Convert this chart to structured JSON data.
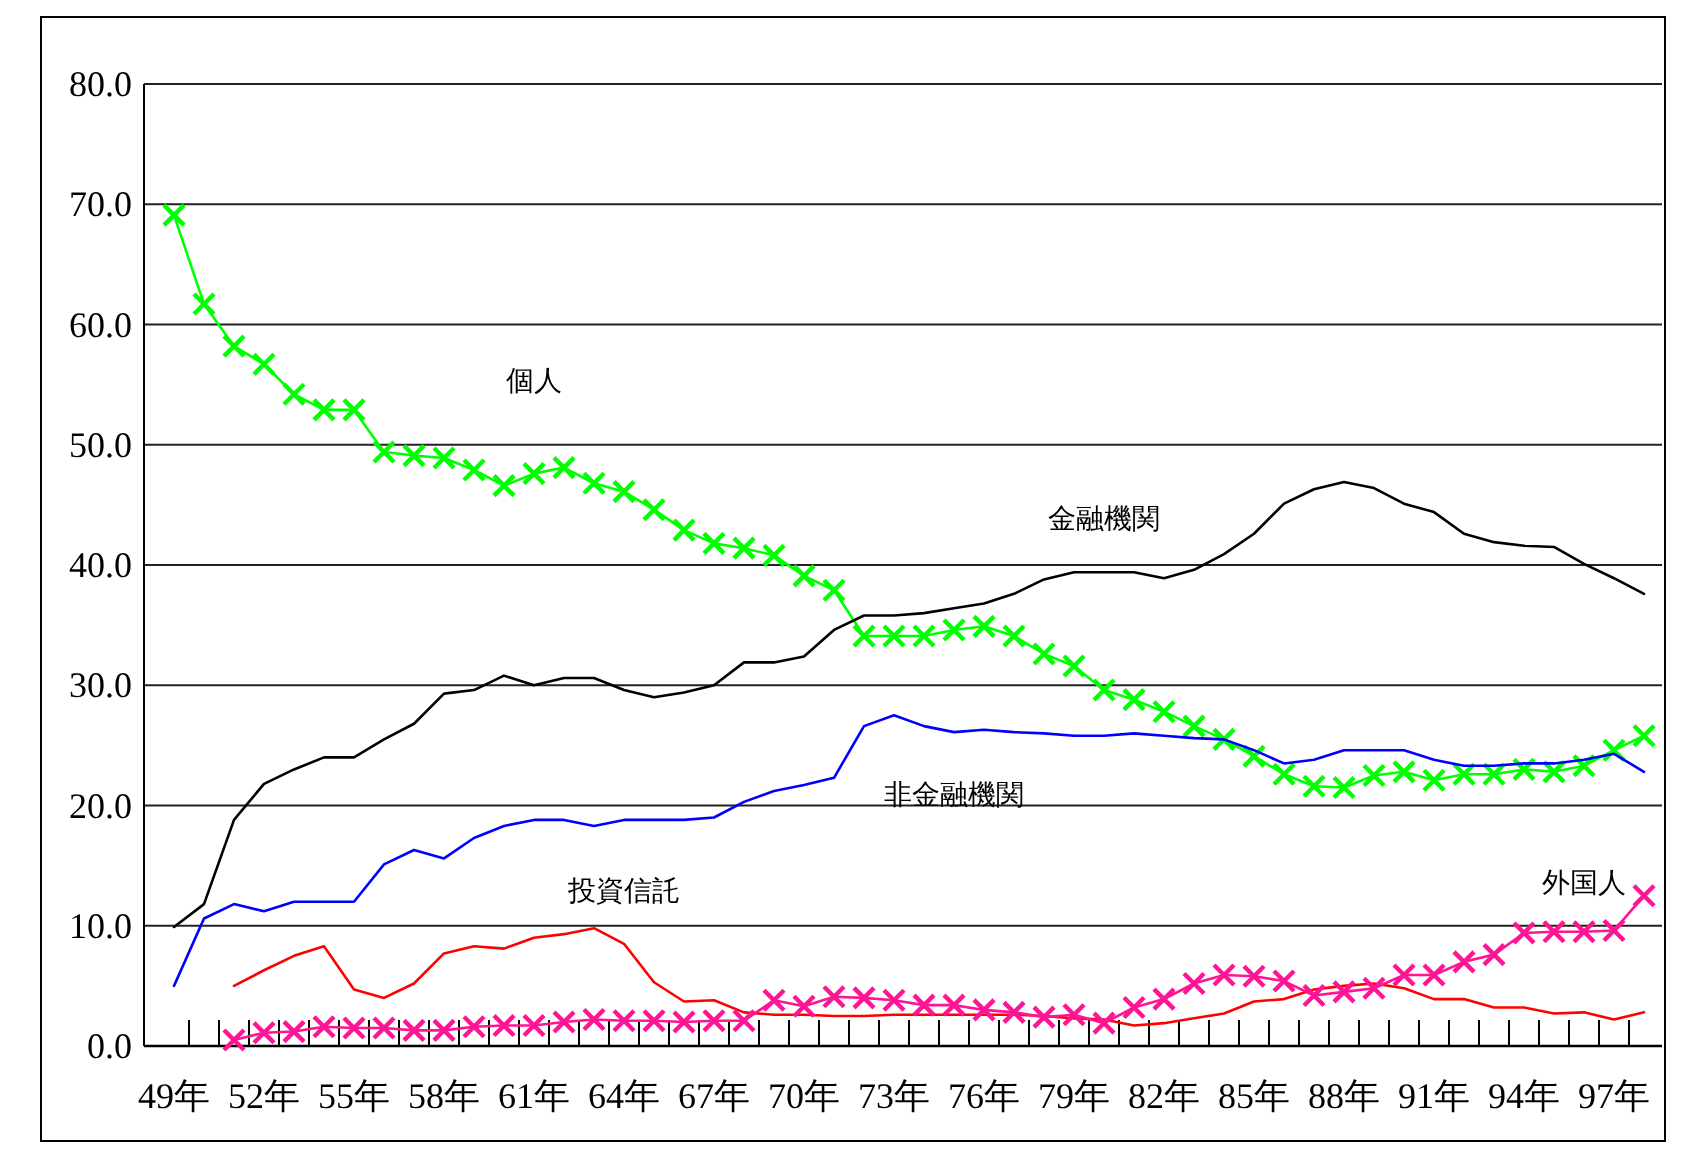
{
  "chart_data": {
    "type": "line",
    "categories": [
      "49年",
      null,
      null,
      "52年",
      null,
      null,
      "55年",
      null,
      null,
      "58年",
      null,
      null,
      "61年",
      null,
      null,
      "64年",
      null,
      null,
      "67年",
      null,
      null,
      "70年",
      null,
      null,
      "73年",
      null,
      null,
      "76年",
      null,
      null,
      "79年",
      null,
      null,
      "82年",
      null,
      null,
      "85年",
      null,
      null,
      "88年",
      null,
      null,
      "91年",
      null,
      null,
      "94年",
      null,
      null,
      "97年",
      null
    ],
    "ylim": [
      0,
      80
    ],
    "yticks": [
      {
        "value": 0,
        "label": "0.0"
      },
      {
        "value": 10,
        "label": "10.0"
      },
      {
        "value": 20,
        "label": "20.0"
      },
      {
        "value": 30,
        "label": "30.0"
      },
      {
        "value": 40,
        "label": "40.0"
      },
      {
        "value": 50,
        "label": "50.0"
      },
      {
        "value": 60,
        "label": "60.0"
      },
      {
        "value": 70,
        "label": "70.0"
      },
      {
        "value": 80,
        "label": "80.0"
      }
    ],
    "grid": "y",
    "series": [
      {
        "name": "個人",
        "color": "#00ff00",
        "marker": "cross",
        "values": [
          69.1,
          61.7,
          58.2,
          56.7,
          54.2,
          52.9,
          52.9,
          49.4,
          49.1,
          48.9,
          47.9,
          46.6,
          47.6,
          48.1,
          46.8,
          46.1,
          44.6,
          42.9,
          41.8,
          41.4,
          40.8,
          39.1,
          37.9,
          34.1,
          34.1,
          34.1,
          34.6,
          34.9,
          34.1,
          32.6,
          31.6,
          29.6,
          28.8,
          27.8,
          26.6,
          25.5,
          24.1,
          22.6,
          21.6,
          21.5,
          22.5,
          22.8,
          22.1,
          22.6,
          22.6,
          23.0,
          22.8,
          23.3,
          24.6,
          25.8
        ]
      },
      {
        "name": "金融機関",
        "color": "#000000",
        "marker": "none",
        "values": [
          9.9,
          11.8,
          18.8,
          21.8,
          23.0,
          24.0,
          24.0,
          25.5,
          26.8,
          29.3,
          29.6,
          30.8,
          30.0,
          30.6,
          30.6,
          29.6,
          29.0,
          29.4,
          30.0,
          31.9,
          31.9,
          32.4,
          34.6,
          35.8,
          35.8,
          36.0,
          36.4,
          36.8,
          37.6,
          38.8,
          39.4,
          39.4,
          39.4,
          38.9,
          39.6,
          40.9,
          42.6,
          45.1,
          46.3,
          46.9,
          46.4,
          45.1,
          44.4,
          42.6,
          41.9,
          41.6,
          41.5,
          40.1,
          38.9,
          37.6
        ]
      },
      {
        "name": "非金融機関",
        "color": "#0000ff",
        "marker": "none",
        "values": [
          5.0,
          10.6,
          11.8,
          11.2,
          12.0,
          12.0,
          12.0,
          15.1,
          16.3,
          15.6,
          17.3,
          18.3,
          18.8,
          18.8,
          18.3,
          18.8,
          18.8,
          18.8,
          19.0,
          20.3,
          21.2,
          21.7,
          22.3,
          26.6,
          27.5,
          26.6,
          26.1,
          26.3,
          26.1,
          26.0,
          25.8,
          25.8,
          26.0,
          25.8,
          25.6,
          25.5,
          24.6,
          23.5,
          23.8,
          24.6,
          24.6,
          24.6,
          23.8,
          23.3,
          23.3,
          23.5,
          23.5,
          23.8,
          24.3,
          22.8
        ]
      },
      {
        "name": "投資信託",
        "color": "#ff0000",
        "marker": "none",
        "values": [
          null,
          null,
          5.0,
          6.3,
          7.5,
          8.3,
          4.7,
          4.0,
          5.2,
          7.7,
          8.3,
          8.1,
          9.0,
          9.3,
          9.8,
          8.5,
          5.3,
          3.7,
          3.8,
          2.8,
          2.6,
          2.6,
          2.5,
          2.5,
          2.6,
          2.6,
          2.6,
          2.6,
          2.6,
          2.5,
          2.3,
          2.2,
          1.7,
          1.9,
          2.3,
          2.7,
          3.7,
          3.9,
          4.7,
          5.0,
          5.2,
          4.8,
          3.9,
          3.9,
          3.2,
          3.2,
          2.7,
          2.8,
          2.2,
          2.8
        ]
      },
      {
        "name": "外国人",
        "color": "#ff1493",
        "marker": "cross",
        "values": [
          null,
          null,
          0.5,
          1.1,
          1.2,
          1.6,
          1.5,
          1.5,
          1.3,
          1.3,
          1.6,
          1.7,
          1.7,
          2.0,
          2.2,
          2.1,
          2.1,
          2.0,
          2.1,
          2.1,
          3.8,
          3.3,
          4.1,
          4.0,
          3.8,
          3.4,
          3.4,
          3.0,
          2.8,
          2.4,
          2.6,
          1.9,
          3.2,
          3.9,
          5.2,
          5.9,
          5.8,
          5.4,
          4.2,
          4.5,
          4.8,
          5.9,
          5.9,
          7.0,
          7.6,
          9.4,
          9.5,
          9.5,
          9.6,
          12.5
        ]
      }
    ]
  }
}
